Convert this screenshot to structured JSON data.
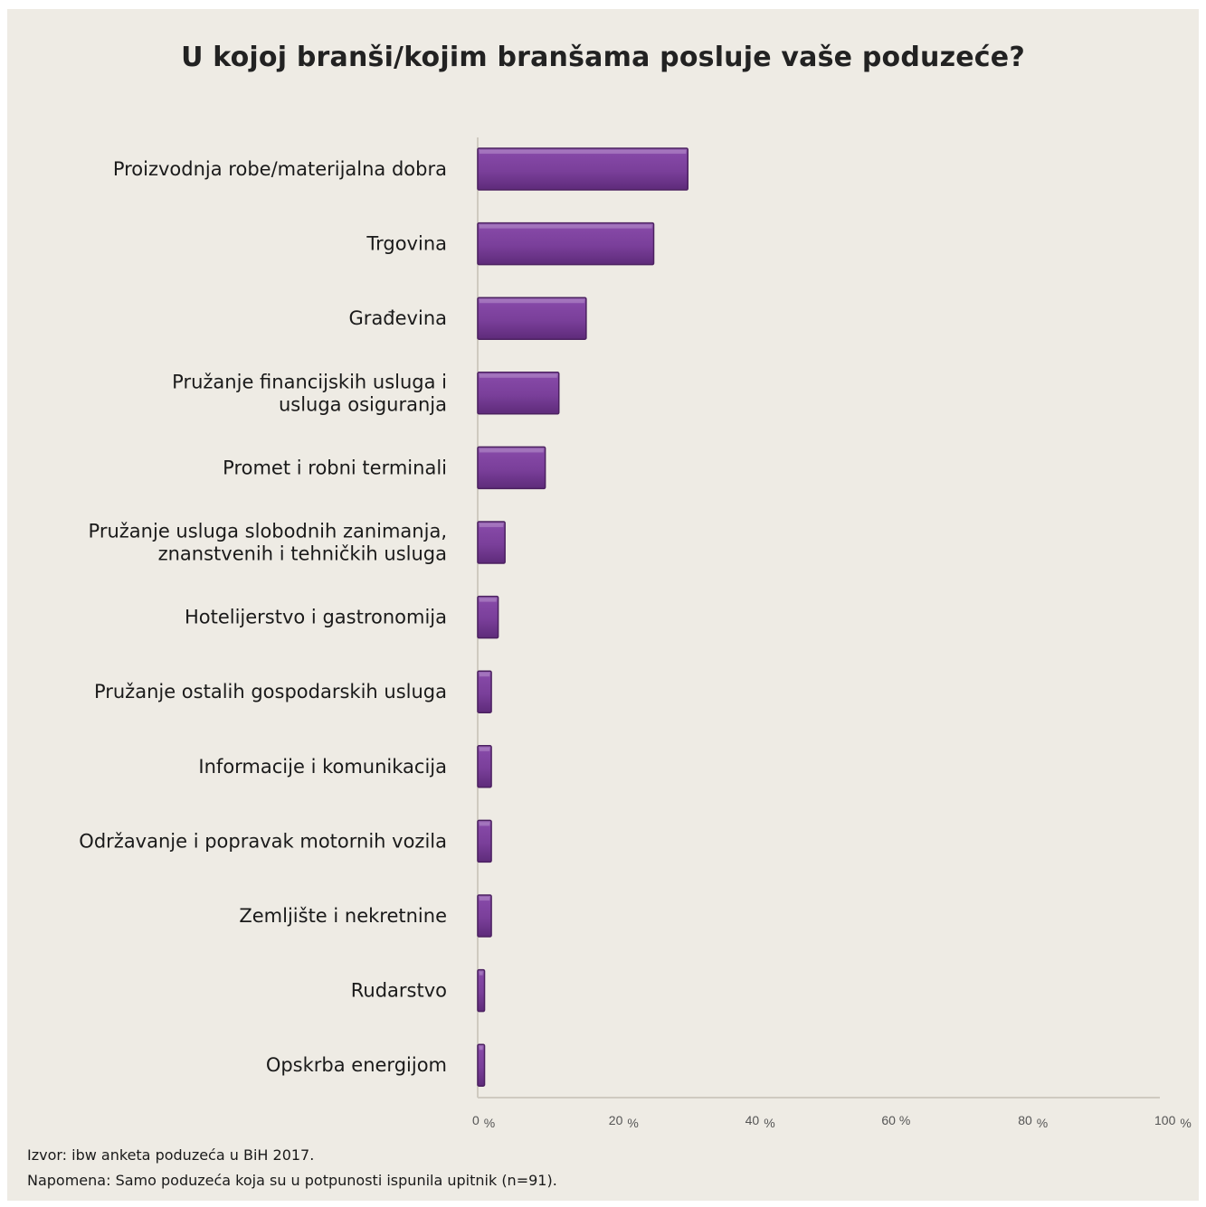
{
  "chart_data": {
    "type": "bar",
    "orientation": "horizontal",
    "title": "U kojoj branši/kojim branšama posluje vaše poduzeće?",
    "categories": [
      [
        "Proizvodnja robe/materijalna dobra"
      ],
      [
        "Trgovina"
      ],
      [
        "Građevina"
      ],
      [
        "Pružanje financijskih usluga i",
        "usluga osiguranja"
      ],
      [
        "Promet i robni terminali"
      ],
      [
        "Pružanje usluga slobodnih zanimanja,",
        "znanstvenih i tehničkih usluga"
      ],
      [
        "Hotelijerstvo i gastronomija"
      ],
      [
        "Pružanje ostalih gospodarskih usluga"
      ],
      [
        "Informacije i komunikacija"
      ],
      [
        "Održavanje i popravak motornih vozila"
      ],
      [
        "Zemljište i nekretnine"
      ],
      [
        "Rudarstvo"
      ],
      [
        "Opskrba energijom"
      ]
    ],
    "values": [
      30.8,
      25.8,
      15.9,
      11.9,
      9.9,
      4.0,
      3.0,
      2.0,
      2.0,
      2.0,
      2.0,
      1.0,
      1.0
    ],
    "value_unit": "%",
    "xlim": [
      0,
      100
    ],
    "xticks": [
      {
        "value": 0,
        "label": "0",
        "unit": "%"
      },
      {
        "value": 20,
        "label": "20",
        "unit": "%"
      },
      {
        "value": 40,
        "label": "40",
        "unit": "%"
      },
      {
        "value": 60,
        "label": "60 %",
        "unit": ""
      },
      {
        "value": 80,
        "label": "80",
        "unit": "%"
      },
      {
        "value": 100,
        "label": "100",
        "unit": "%"
      }
    ],
    "grid": false,
    "bar_color": "#7a3f9a",
    "bar_edge_color": "#4b2060"
  },
  "notes": {
    "source": "Izvor: ibw anketa poduzeća u BiH 2017.",
    "remark": "Napomena: Samo poduzeća koja su u potpunosti ispunila upitnik (n=91)."
  }
}
